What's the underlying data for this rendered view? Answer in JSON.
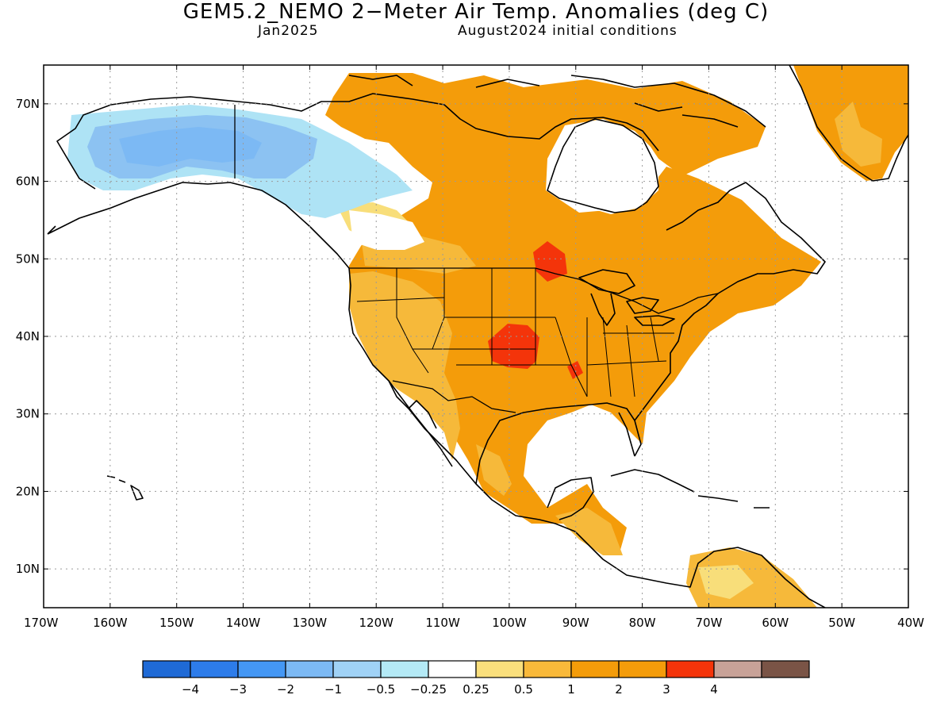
{
  "header": {
    "title": "GEM5.2_NEMO 2−Meter Air Temp. Anomalies (deg C)",
    "valid_month": "Jan2025",
    "initial_conditions": "August2024 initial conditions"
  },
  "map": {
    "lon_range": [
      -170,
      -40
    ],
    "lat_range": [
      5,
      75
    ],
    "lat_labels": [
      "10N",
      "20N",
      "30N",
      "40N",
      "50N",
      "60N",
      "70N"
    ],
    "lon_labels": [
      "170W",
      "160W",
      "150W",
      "140W",
      "130W",
      "120W",
      "110W",
      "100W",
      "90W",
      "80W",
      "70W",
      "60W",
      "50W",
      "40W"
    ],
    "gridlines": "dotted",
    "colors": {
      "slightly_warm": "#f6b93a",
      "warm": "#f49c0a",
      "very_warm": "#f4340a",
      "cold": "#8cc2f2",
      "cool": "#aee3f5",
      "weak": "#f8de7a"
    }
  },
  "legend": {
    "colors": [
      "#1f6ad6",
      "#2d7cea",
      "#4497f4",
      "#7cb9f4",
      "#a0d2f6",
      "#b4eaf6",
      "#ffffff",
      "#fadf7c",
      "#f9b93a",
      "#f49c0a",
      "#f49c0a",
      "#f4340a",
      "#c8a298",
      "#7a5446"
    ],
    "labels": [
      "−4",
      "−3",
      "−2",
      "−1",
      "−0.5",
      "−0.25",
      "0.25",
      "0.5",
      "1",
      "2",
      "3",
      "4"
    ]
  }
}
